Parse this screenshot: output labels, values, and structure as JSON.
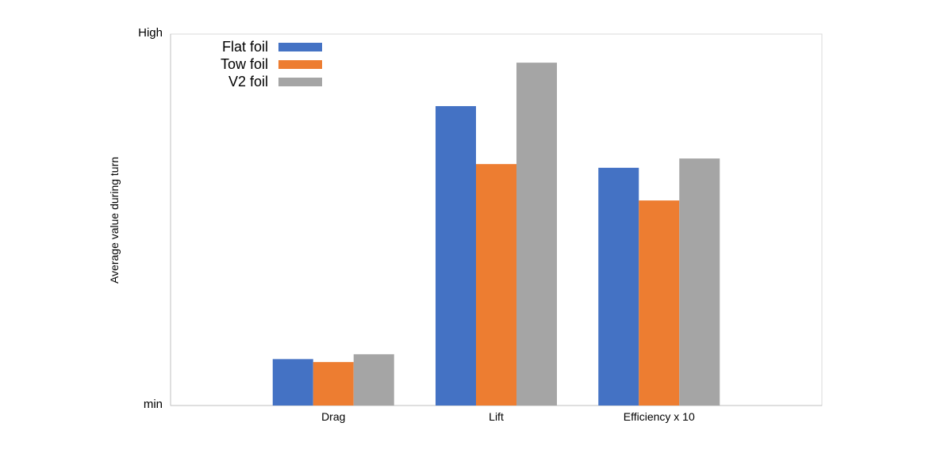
{
  "chart_data": {
    "type": "bar",
    "title": "",
    "xlabel": "",
    "ylabel": "Average value during turn",
    "y_tick_labels": [
      "min",
      "High"
    ],
    "ylim": [
      0,
      100
    ],
    "grid": false,
    "legend_position": "top-left",
    "categories": [
      "Drag",
      "Lift",
      "Efficiency x 10"
    ],
    "series": [
      {
        "name": "Flat foil",
        "color": "#4472c4",
        "values": [
          12.5,
          80.6,
          64.0
        ]
      },
      {
        "name": "Tow foil",
        "color": "#ed7d31",
        "values": [
          11.7,
          65.0,
          55.2
        ]
      },
      {
        "name": "V2 foil",
        "color": "#a5a5a5",
        "values": [
          13.8,
          92.3,
          66.5
        ]
      }
    ]
  }
}
